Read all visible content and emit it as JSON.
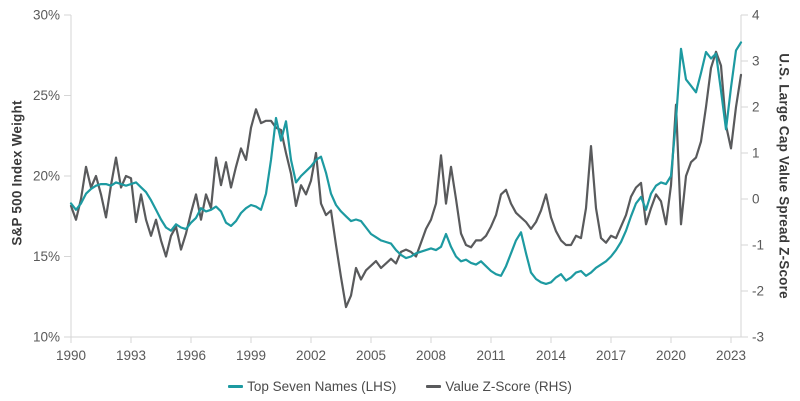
{
  "chart_data": {
    "type": "line",
    "title": "",
    "grid": false,
    "x": {
      "min": 1990,
      "max": 2023.5,
      "ticks": [
        1990,
        1993,
        1996,
        1999,
        2002,
        2005,
        2008,
        2011,
        2014,
        2017,
        2020,
        2023
      ]
    },
    "y_left": {
      "label": "S&P 500 Index Weight",
      "min": 10,
      "max": 30,
      "tick_values": [
        30,
        25,
        20,
        15,
        10
      ],
      "ticks": [
        "30%",
        "25%",
        "20%",
        "15%",
        "10%"
      ]
    },
    "y_right": {
      "label": "U.S. Large Cap Value Spread Z-Score",
      "min": -3,
      "max": 4,
      "tick_values": [
        4,
        3,
        2,
        1,
        0,
        -1,
        -2,
        -3
      ],
      "ticks": [
        "4",
        "3",
        "2",
        "1",
        "0",
        "-1",
        "-2",
        "-3"
      ]
    },
    "legend": {
      "position": "bottom"
    },
    "colors": {
      "teal": "#1D9AA1",
      "dark_gray": "#595A5C",
      "axis_line": "#D6D6D6",
      "tick_text": "#595959",
      "axis_title_text": "#3A3A3A"
    },
    "series": [
      {
        "name": "Top Seven Names (LHS)",
        "axis": "left",
        "unit": "%",
        "color": "#1D9AA1",
        "x_start": 1990,
        "x_step": 0.25,
        "values": [
          18.3,
          17.9,
          18.3,
          18.9,
          19.2,
          19.4,
          19.5,
          19.5,
          19.4,
          19.6,
          19.5,
          19.4,
          19.5,
          19.6,
          19.3,
          19.0,
          18.5,
          17.9,
          17.3,
          16.8,
          16.6,
          17.0,
          16.8,
          16.7,
          17.1,
          17.4,
          18.0,
          17.8,
          17.9,
          18.1,
          17.8,
          17.1,
          16.9,
          17.2,
          17.7,
          18.0,
          18.2,
          18.1,
          17.9,
          18.9,
          21.0,
          23.6,
          22.2,
          23.4,
          21.0,
          19.6,
          20.0,
          20.3,
          20.6,
          21.0,
          21.2,
          20.2,
          18.9,
          18.2,
          17.8,
          17.5,
          17.2,
          17.3,
          17.2,
          16.8,
          16.4,
          16.2,
          16.0,
          15.9,
          15.8,
          15.4,
          15.1,
          14.9,
          15.0,
          15.2,
          15.3,
          15.4,
          15.5,
          15.4,
          15.6,
          16.4,
          15.6,
          15.0,
          14.7,
          14.8,
          14.6,
          14.5,
          14.7,
          14.4,
          14.1,
          13.9,
          13.8,
          14.4,
          15.2,
          16.0,
          16.5,
          15.2,
          14.0,
          13.6,
          13.4,
          13.3,
          13.4,
          13.7,
          13.9,
          13.5,
          13.7,
          14.0,
          14.1,
          13.8,
          14.0,
          14.3,
          14.5,
          14.7,
          15.0,
          15.4,
          15.9,
          16.6,
          17.5,
          18.3,
          18.7,
          17.9,
          18.9,
          19.4,
          19.6,
          19.5,
          20.0,
          23.5,
          27.9,
          26.0,
          25.6,
          25.2,
          26.4,
          27.7,
          27.3,
          27.6,
          25.3,
          22.9,
          25.5,
          27.8,
          28.3
        ]
      },
      {
        "name": "Value Z-Score (RHS)",
        "axis": "right",
        "unit": "z",
        "color": "#595A5C",
        "x_start": 1990,
        "x_step": 0.25,
        "values": [
          -0.15,
          -0.45,
          0.0,
          0.7,
          0.25,
          0.5,
          0.1,
          -0.4,
          0.3,
          0.9,
          0.25,
          0.5,
          0.45,
          -0.5,
          0.1,
          -0.45,
          -0.8,
          -0.45,
          -0.9,
          -1.25,
          -0.8,
          -0.6,
          -1.1,
          -0.75,
          -0.3,
          0.1,
          -0.45,
          0.1,
          -0.2,
          0.9,
          0.3,
          0.8,
          0.25,
          0.7,
          1.1,
          0.85,
          1.55,
          1.95,
          1.65,
          1.7,
          1.7,
          1.55,
          1.5,
          1.0,
          0.55,
          -0.15,
          0.3,
          0.1,
          0.4,
          1.0,
          -0.1,
          -0.35,
          -0.25,
          -1.0,
          -1.7,
          -2.35,
          -2.1,
          -1.5,
          -1.75,
          -1.55,
          -1.45,
          -1.35,
          -1.5,
          -1.4,
          -1.3,
          -1.4,
          -1.15,
          -1.1,
          -1.15,
          -1.25,
          -0.95,
          -0.65,
          -0.45,
          -0.1,
          0.95,
          -0.1,
          0.7,
          0.0,
          -0.75,
          -1.0,
          -1.05,
          -0.9,
          -0.9,
          -0.8,
          -0.6,
          -0.35,
          0.1,
          0.2,
          -0.1,
          -0.3,
          -0.4,
          -0.5,
          -0.65,
          -0.5,
          -0.25,
          0.1,
          -0.4,
          -0.7,
          -0.9,
          -1.0,
          -1.0,
          -0.8,
          -0.85,
          -0.2,
          1.15,
          -0.2,
          -0.85,
          -0.95,
          -0.8,
          -0.85,
          -0.6,
          -0.35,
          0.05,
          0.25,
          0.35,
          -0.55,
          -0.2,
          0.1,
          -0.05,
          -0.55,
          0.3,
          2.05,
          -0.55,
          0.5,
          0.8,
          0.9,
          1.25,
          2.0,
          2.85,
          3.2,
          2.9,
          1.6,
          1.1,
          2.0,
          2.7
        ]
      }
    ]
  }
}
